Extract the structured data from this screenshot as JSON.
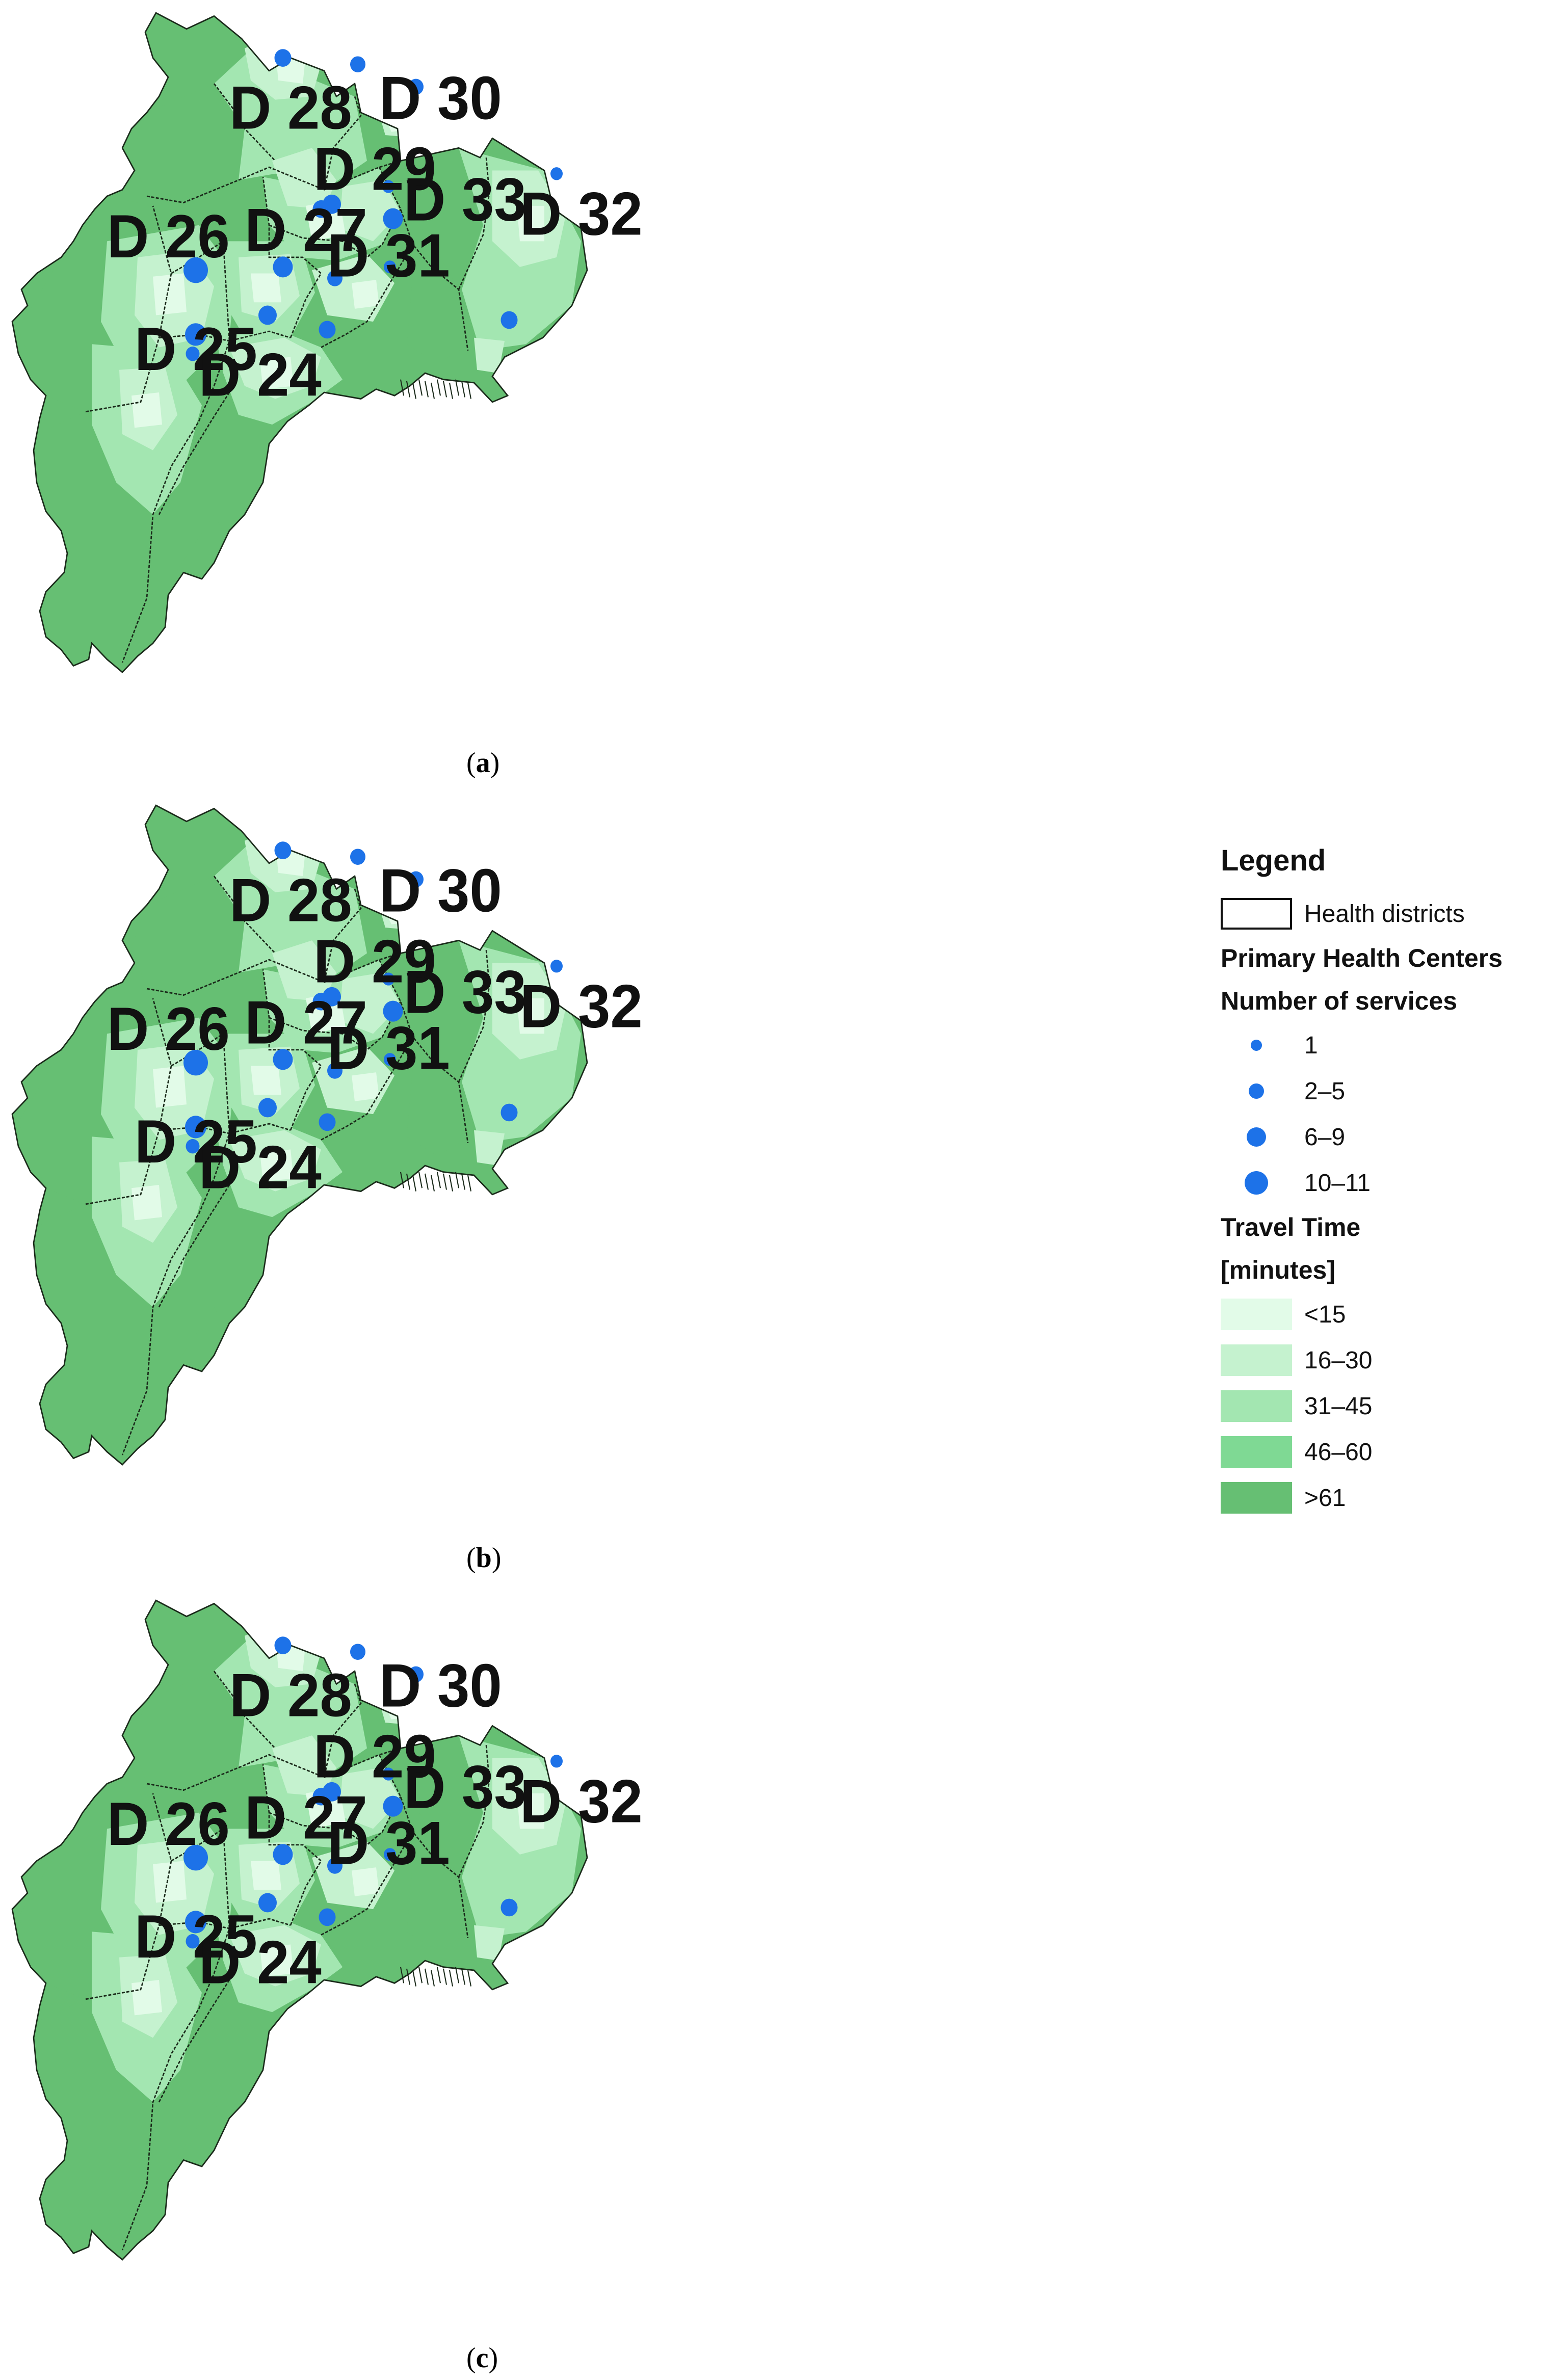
{
  "colors": {
    "lt15": "#e2fbe8",
    "t16_30": "#c5f2cf",
    "t31_45": "#a3e6b1",
    "t46_60": "#7fd994",
    "gt61": "#66bf73",
    "district_border": "#1a2a1a",
    "center": "#1d72e8"
  },
  "captions": [
    "a",
    "b",
    "c"
  ],
  "districts": [
    "D 24",
    "D 25",
    "D 26",
    "D 27",
    "D 28",
    "D 29",
    "D 30",
    "D 31",
    "D 32",
    "D 33"
  ],
  "legend": {
    "title": "Legend",
    "health_districts": "Health districts",
    "phc_title": "Primary Health Centers",
    "services_title": "Number of services",
    "services": [
      "1",
      "2–5",
      "6–9",
      "10–11"
    ],
    "travel_title": "Travel Time",
    "travel_unit": "[minutes]",
    "travel": [
      "<15",
      "16–30",
      "31–45",
      "46–60",
      ">61"
    ]
  }
}
